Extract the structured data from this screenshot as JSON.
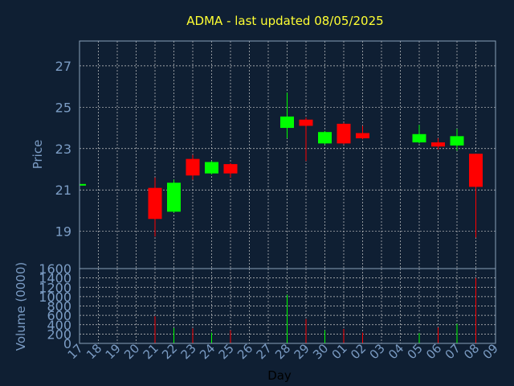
{
  "chart_data": {
    "type": "candlestick",
    "title": "ADMA - last updated 08/05/2025",
    "xlabel": "Day",
    "price_ylabel": "Price",
    "volume_ylabel": "Volume (0000)",
    "x_ticks": [
      "17",
      "18",
      "19",
      "20",
      "21",
      "22",
      "23",
      "24",
      "25",
      "26",
      "27",
      "28",
      "29",
      "30",
      "01",
      "02",
      "03",
      "04",
      "05",
      "06",
      "07",
      "08",
      "09"
    ],
    "price_yticks": [
      19,
      21,
      23,
      25,
      27
    ],
    "price_ylim": [
      17.2,
      28.2
    ],
    "volume_yticks": [
      0,
      200,
      400,
      600,
      800,
      1000,
      1200,
      1400,
      1600
    ],
    "volume_ylim": [
      0,
      1600
    ],
    "up_color": "#00ff00",
    "down_color": "#ff0000",
    "flat_color": "#00ff00",
    "candles": [
      {
        "day": "17",
        "open": 21.25,
        "close": 21.25,
        "high": 21.25,
        "low": 21.25,
        "volume": 0
      },
      {
        "day": "21",
        "open": 21.1,
        "close": 19.6,
        "high": 21.6,
        "low": 18.75,
        "volume": 580
      },
      {
        "day": "22",
        "open": 19.95,
        "close": 21.35,
        "high": 21.5,
        "low": 19.9,
        "volume": 330
      },
      {
        "day": "23",
        "open": 22.5,
        "close": 21.7,
        "high": 22.7,
        "low": 21.5,
        "volume": 320
      },
      {
        "day": "24",
        "open": 21.8,
        "close": 22.35,
        "high": 22.4,
        "low": 21.75,
        "volume": 230
      },
      {
        "day": "25",
        "open": 22.25,
        "close": 21.8,
        "high": 22.3,
        "low": 21.6,
        "volume": 280
      },
      {
        "day": "28",
        "open": 24.0,
        "close": 24.55,
        "high": 25.7,
        "low": 23.5,
        "volume": 1040
      },
      {
        "day": "29",
        "open": 24.4,
        "close": 24.1,
        "high": 24.5,
        "low": 22.4,
        "volume": 520
      },
      {
        "day": "30",
        "open": 23.25,
        "close": 23.8,
        "high": 23.85,
        "low": 23.2,
        "volume": 280
      },
      {
        "day": "01",
        "open": 24.2,
        "close": 23.25,
        "high": 24.25,
        "low": 23.2,
        "volume": 310
      },
      {
        "day": "02",
        "open": 23.75,
        "close": 23.5,
        "high": 24.1,
        "low": 23.45,
        "volume": 230
      },
      {
        "day": "05",
        "open": 23.3,
        "close": 23.7,
        "high": 24.15,
        "low": 23.25,
        "volume": 220
      },
      {
        "day": "06",
        "open": 23.3,
        "close": 23.1,
        "high": 23.5,
        "low": 22.95,
        "volume": 340
      },
      {
        "day": "07",
        "open": 23.15,
        "close": 23.6,
        "high": 23.95,
        "low": 22.9,
        "volume": 420
      },
      {
        "day": "08",
        "open": 22.75,
        "close": 21.15,
        "high": 22.75,
        "low": 18.7,
        "volume": 1400
      }
    ]
  }
}
